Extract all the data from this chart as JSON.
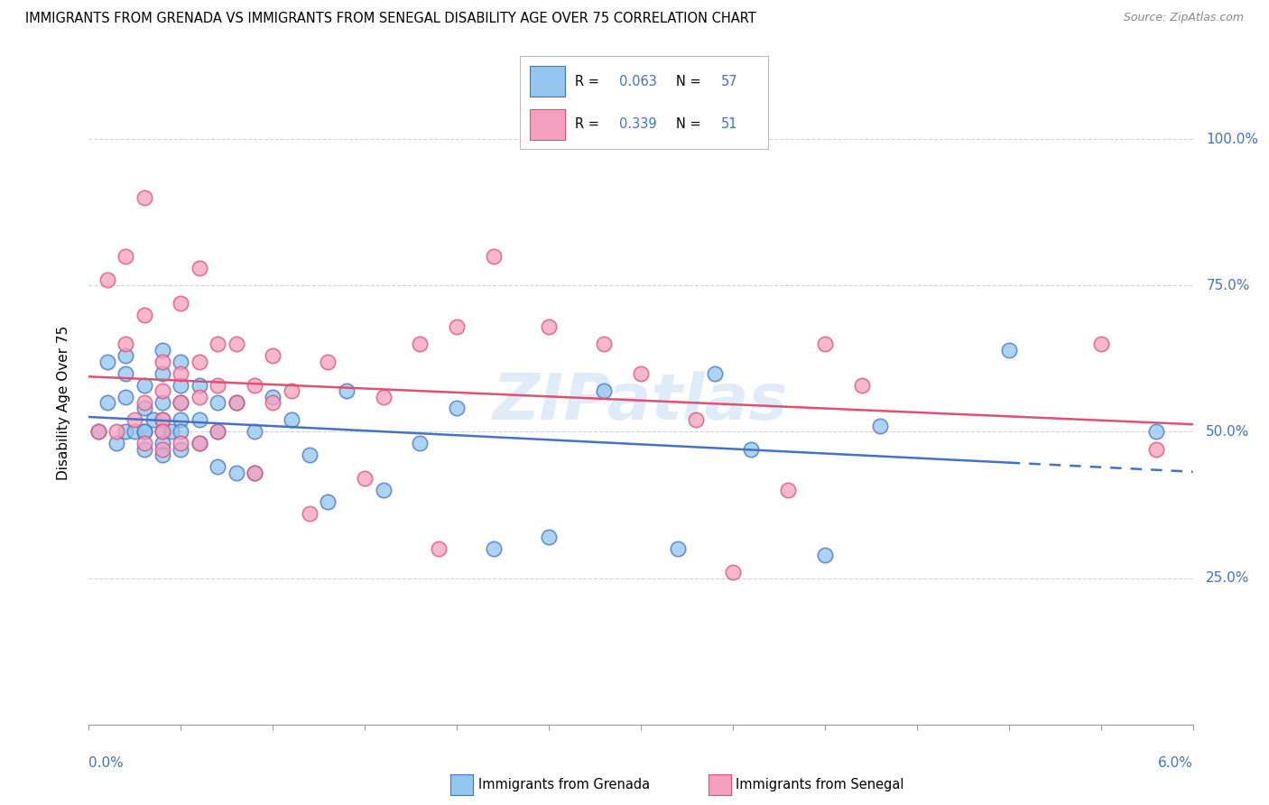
{
  "title": "IMMIGRANTS FROM GRENADA VS IMMIGRANTS FROM SENEGAL DISABILITY AGE OVER 75 CORRELATION CHART",
  "source": "Source: ZipAtlas.com",
  "ylabel": "Disability Age Over 75",
  "xlim": [
    0.0,
    0.06
  ],
  "ylim": [
    0.0,
    1.1
  ],
  "ytick_vals": [
    0.25,
    0.5,
    0.75,
    1.0
  ],
  "ytick_labels": [
    "25.0%",
    "50.0%",
    "75.0%",
    "100.0%"
  ],
  "xtick_label_left": "0.0%",
  "xtick_label_right": "6.0%",
  "grenada_R": 0.063,
  "grenada_N": 57,
  "senegal_R": 0.339,
  "senegal_N": 51,
  "grenada_scatter_color": "#92c5f0",
  "senegal_scatter_color": "#f5a0bf",
  "grenada_line_color": "#4472c4",
  "senegal_line_color": "#e05070",
  "axis_color": "#4472c4",
  "grid_color": "#c8c8c8",
  "watermark_text": "ZIPatlas",
  "legend_label_grenada": "Immigrants from Grenada",
  "legend_label_senegal": "Immigrants from Senegal",
  "grenada_x": [
    0.0005,
    0.001,
    0.001,
    0.0015,
    0.002,
    0.002,
    0.002,
    0.002,
    0.0025,
    0.003,
    0.003,
    0.003,
    0.003,
    0.003,
    0.0035,
    0.004,
    0.004,
    0.004,
    0.004,
    0.004,
    0.004,
    0.004,
    0.0045,
    0.005,
    0.005,
    0.005,
    0.005,
    0.005,
    0.005,
    0.006,
    0.006,
    0.006,
    0.007,
    0.007,
    0.007,
    0.008,
    0.008,
    0.009,
    0.009,
    0.01,
    0.011,
    0.012,
    0.013,
    0.014,
    0.016,
    0.018,
    0.02,
    0.022,
    0.025,
    0.028,
    0.032,
    0.034,
    0.036,
    0.04,
    0.043,
    0.05,
    0.058
  ],
  "grenada_y": [
    0.5,
    0.62,
    0.55,
    0.48,
    0.63,
    0.6,
    0.56,
    0.5,
    0.5,
    0.58,
    0.54,
    0.5,
    0.5,
    0.47,
    0.52,
    0.64,
    0.6,
    0.55,
    0.52,
    0.5,
    0.48,
    0.46,
    0.5,
    0.62,
    0.58,
    0.55,
    0.52,
    0.5,
    0.47,
    0.58,
    0.52,
    0.48,
    0.55,
    0.5,
    0.44,
    0.55,
    0.43,
    0.5,
    0.43,
    0.56,
    0.52,
    0.46,
    0.38,
    0.57,
    0.4,
    0.48,
    0.54,
    0.3,
    0.32,
    0.57,
    0.3,
    0.6,
    0.47,
    0.29,
    0.51,
    0.64,
    0.5
  ],
  "senegal_x": [
    0.0005,
    0.001,
    0.0015,
    0.002,
    0.002,
    0.0025,
    0.003,
    0.003,
    0.003,
    0.003,
    0.004,
    0.004,
    0.004,
    0.004,
    0.004,
    0.005,
    0.005,
    0.005,
    0.005,
    0.006,
    0.006,
    0.006,
    0.006,
    0.007,
    0.007,
    0.007,
    0.008,
    0.008,
    0.009,
    0.009,
    0.01,
    0.01,
    0.011,
    0.012,
    0.013,
    0.015,
    0.016,
    0.018,
    0.019,
    0.02,
    0.022,
    0.025,
    0.028,
    0.03,
    0.033,
    0.035,
    0.038,
    0.04,
    0.042,
    0.055,
    0.058
  ],
  "senegal_y": [
    0.5,
    0.76,
    0.5,
    0.8,
    0.65,
    0.52,
    0.9,
    0.7,
    0.55,
    0.48,
    0.62,
    0.57,
    0.52,
    0.5,
    0.47,
    0.72,
    0.6,
    0.55,
    0.48,
    0.78,
    0.62,
    0.56,
    0.48,
    0.65,
    0.58,
    0.5,
    0.65,
    0.55,
    0.58,
    0.43,
    0.63,
    0.55,
    0.57,
    0.36,
    0.62,
    0.42,
    0.56,
    0.65,
    0.3,
    0.68,
    0.8,
    0.68,
    0.65,
    0.6,
    0.52,
    0.26,
    0.4,
    0.65,
    0.58,
    0.65,
    0.47
  ]
}
